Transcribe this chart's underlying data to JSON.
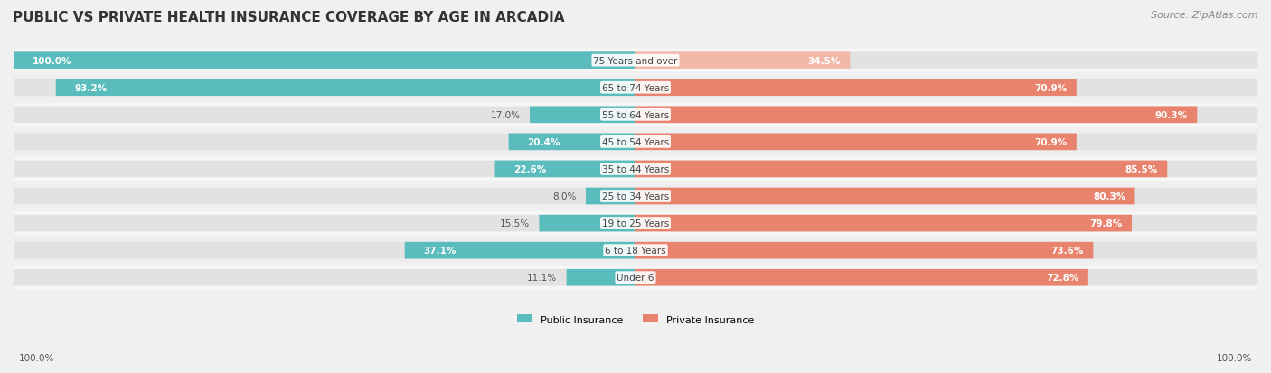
{
  "title": "PUBLIC VS PRIVATE HEALTH INSURANCE COVERAGE BY AGE IN ARCADIA",
  "source": "Source: ZipAtlas.com",
  "categories": [
    "Under 6",
    "6 to 18 Years",
    "19 to 25 Years",
    "25 to 34 Years",
    "35 to 44 Years",
    "45 to 54 Years",
    "55 to 64 Years",
    "65 to 74 Years",
    "75 Years and over"
  ],
  "public_values": [
    11.1,
    37.1,
    15.5,
    8.0,
    22.6,
    20.4,
    17.0,
    93.2,
    100.0
  ],
  "private_values": [
    72.8,
    73.6,
    79.8,
    80.3,
    85.5,
    70.9,
    90.3,
    70.9,
    34.5
  ],
  "public_color": "#5bbcbd",
  "private_color": "#e8836e",
  "private_color_light": "#f2b8a8",
  "bg_color": "#f0f0f0",
  "bar_bg_color": "#e2e2e2",
  "title_fontsize": 11,
  "source_fontsize": 8,
  "bar_height": 0.62,
  "max_value": 100.0,
  "legend_public": "Public Insurance",
  "legend_private": "Private Insurance"
}
